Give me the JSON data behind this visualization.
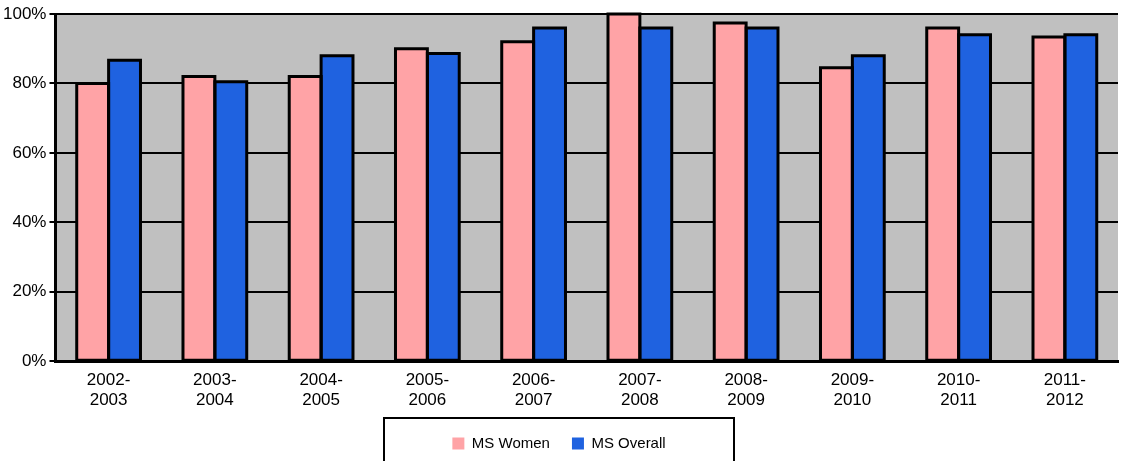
{
  "chart_data": {
    "type": "bar",
    "categories": [
      "2002-2003",
      "2003-2004",
      "2004-2005",
      "2005-2006",
      "2006-2007",
      "2007-2008",
      "2008-2009",
      "2009-2010",
      "2010-2011",
      "2011-2012"
    ],
    "series": [
      {
        "name": "MS Women",
        "color": "#ffa3a6",
        "values": [
          80,
          82,
          82,
          90,
          92,
          100,
          97.4,
          84.5,
          96,
          93.4
        ]
      },
      {
        "name": "MS Overall",
        "color": "#1f62e0",
        "values": [
          86.7,
          80.5,
          88,
          88.6,
          96,
          96,
          96,
          88,
          94,
          94
        ]
      }
    ],
    "ylim": [
      0,
      100
    ],
    "yticks": [
      {
        "value": 0,
        "label": "0%"
      },
      {
        "value": 20,
        "label": "20%"
      },
      {
        "value": 40,
        "label": "40%"
      },
      {
        "value": 60,
        "label": "60%"
      },
      {
        "value": 80,
        "label": "80%"
      },
      {
        "value": 100,
        "label": "100%"
      }
    ],
    "grid": "y",
    "legend": "bottom"
  }
}
